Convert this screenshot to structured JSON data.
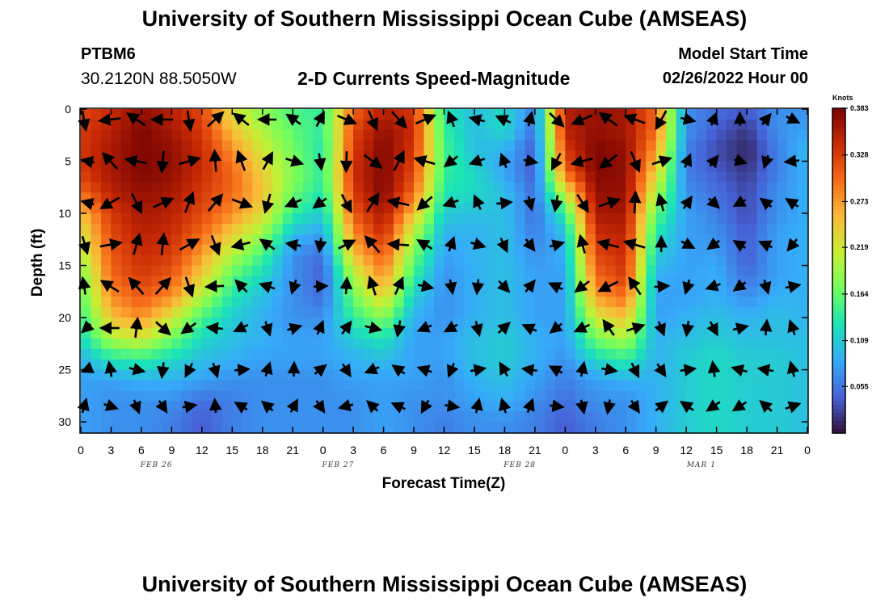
{
  "header": {
    "title": "University of Southern Mississippi Ocean Cube (AMSEAS)",
    "station_id": "PTBM6",
    "station_coords": "30.2120N  88.5050W",
    "subtitle": "2-D Currents Speed-Magnitude",
    "model_start_label": "Model Start Time",
    "model_start_value": "02/26/2022 Hour 00"
  },
  "footer": {
    "title": "University of Southern Mississippi Ocean Cube (AMSEAS)"
  },
  "colors": {
    "colormap": [
      "#30123b",
      "#4662d7",
      "#36aaf9",
      "#1ae4b6",
      "#72fe5e",
      "#c7ef34",
      "#fabb38",
      "#f66b19",
      "#ca2a04",
      "#7a0403"
    ]
  },
  "chart_data": {
    "type": "heatmap",
    "xlabel": "Forecast Time(Z)",
    "ylabel": "Depth (ft)",
    "xlim": [
      0,
      72
    ],
    "ylim": [
      31,
      0
    ],
    "x_ticks": [
      0,
      3,
      6,
      9,
      12,
      15,
      18,
      21,
      24,
      27,
      30,
      33,
      36,
      39,
      42,
      45,
      48,
      51,
      54,
      57,
      60,
      63,
      66,
      69,
      72
    ],
    "x_tick_labels": [
      "0",
      "3",
      "6",
      "9",
      "12",
      "15",
      "18",
      "21",
      "0",
      "3",
      "6",
      "9",
      "12",
      "15",
      "18",
      "21",
      "0",
      "3",
      "6",
      "9",
      "12",
      "15",
      "18",
      "21",
      "0"
    ],
    "y_ticks": [
      0,
      5,
      10,
      15,
      20,
      25,
      30
    ],
    "y_tick_labels": [
      "0",
      "5",
      "10",
      "15",
      "20",
      "25",
      "30"
    ],
    "date_labels": [
      {
        "x": 7.5,
        "label": "FEB 26"
      },
      {
        "x": 25.5,
        "label": "FEB 27"
      },
      {
        "x": 43.5,
        "label": "FEB 28"
      },
      {
        "x": 61.5,
        "label": "MAR 1"
      }
    ],
    "colorbar": {
      "title": "Knots",
      "min": 0.0,
      "max": 0.383,
      "ticks": [
        0.383,
        0.328,
        0.273,
        0.219,
        0.164,
        0.109,
        0.055
      ],
      "tick_labels": [
        "0.383",
        "0.328",
        "0.273",
        "0.219",
        "0.164",
        "0.109",
        "0.055"
      ]
    },
    "speed_grid": {
      "units": "Knots",
      "depths": [
        0,
        2,
        4,
        6,
        8,
        10,
        12,
        14,
        16,
        18,
        20,
        22,
        24,
        26,
        28,
        30
      ],
      "times": [
        0,
        3,
        6,
        9,
        12,
        15,
        18,
        21,
        24,
        27,
        30,
        33,
        36,
        39,
        42,
        45,
        48,
        51,
        54,
        57,
        60,
        63,
        66,
        69,
        72
      ],
      "values": [
        [
          0.32,
          0.34,
          0.37,
          0.35,
          0.32,
          0.22,
          0.18,
          0.15,
          0.14,
          0.3,
          0.35,
          0.33,
          0.13,
          0.1,
          0.12,
          0.06,
          0.35,
          0.37,
          0.36,
          0.3,
          0.07,
          0.05,
          0.04,
          0.07,
          0.07
        ],
        [
          0.33,
          0.35,
          0.38,
          0.36,
          0.33,
          0.25,
          0.2,
          0.16,
          0.14,
          0.32,
          0.37,
          0.34,
          0.14,
          0.1,
          0.12,
          0.05,
          0.35,
          0.37,
          0.36,
          0.3,
          0.07,
          0.04,
          0.02,
          0.07,
          0.08
        ],
        [
          0.33,
          0.36,
          0.38,
          0.37,
          0.34,
          0.28,
          0.22,
          0.17,
          0.13,
          0.33,
          0.38,
          0.33,
          0.15,
          0.1,
          0.09,
          0.04,
          0.33,
          0.38,
          0.37,
          0.27,
          0.06,
          0.03,
          0.01,
          0.06,
          0.1
        ],
        [
          0.33,
          0.36,
          0.38,
          0.37,
          0.34,
          0.3,
          0.24,
          0.18,
          0.14,
          0.34,
          0.38,
          0.32,
          0.14,
          0.12,
          0.08,
          0.04,
          0.3,
          0.38,
          0.37,
          0.24,
          0.06,
          0.04,
          0.02,
          0.06,
          0.09
        ],
        [
          0.3,
          0.35,
          0.37,
          0.36,
          0.33,
          0.3,
          0.25,
          0.17,
          0.13,
          0.33,
          0.38,
          0.3,
          0.13,
          0.12,
          0.1,
          0.05,
          0.22,
          0.37,
          0.37,
          0.2,
          0.07,
          0.05,
          0.03,
          0.07,
          0.09
        ],
        [
          0.25,
          0.33,
          0.36,
          0.35,
          0.32,
          0.28,
          0.23,
          0.14,
          0.11,
          0.31,
          0.36,
          0.25,
          0.11,
          0.1,
          0.1,
          0.05,
          0.14,
          0.36,
          0.36,
          0.16,
          0.08,
          0.06,
          0.03,
          0.07,
          0.09
        ],
        [
          0.22,
          0.32,
          0.35,
          0.34,
          0.3,
          0.24,
          0.19,
          0.1,
          0.08,
          0.28,
          0.34,
          0.2,
          0.09,
          0.09,
          0.1,
          0.06,
          0.1,
          0.34,
          0.35,
          0.13,
          0.08,
          0.07,
          0.04,
          0.08,
          0.09
        ],
        [
          0.2,
          0.31,
          0.34,
          0.33,
          0.27,
          0.2,
          0.15,
          0.07,
          0.05,
          0.25,
          0.31,
          0.17,
          0.08,
          0.09,
          0.1,
          0.07,
          0.09,
          0.32,
          0.34,
          0.11,
          0.08,
          0.08,
          0.04,
          0.08,
          0.09
        ],
        [
          0.17,
          0.3,
          0.33,
          0.31,
          0.24,
          0.16,
          0.12,
          0.07,
          0.04,
          0.2,
          0.28,
          0.14,
          0.07,
          0.09,
          0.1,
          0.08,
          0.08,
          0.3,
          0.33,
          0.09,
          0.08,
          0.09,
          0.05,
          0.08,
          0.09
        ],
        [
          0.16,
          0.28,
          0.31,
          0.28,
          0.2,
          0.13,
          0.1,
          0.07,
          0.05,
          0.17,
          0.24,
          0.11,
          0.07,
          0.09,
          0.1,
          0.08,
          0.08,
          0.27,
          0.3,
          0.08,
          0.08,
          0.09,
          0.07,
          0.09,
          0.09
        ],
        [
          0.14,
          0.25,
          0.28,
          0.22,
          0.15,
          0.11,
          0.09,
          0.07,
          0.07,
          0.14,
          0.18,
          0.09,
          0.07,
          0.09,
          0.1,
          0.08,
          0.08,
          0.22,
          0.25,
          0.08,
          0.09,
          0.1,
          0.09,
          0.1,
          0.09
        ],
        [
          0.12,
          0.2,
          0.22,
          0.17,
          0.12,
          0.1,
          0.09,
          0.08,
          0.08,
          0.11,
          0.13,
          0.08,
          0.08,
          0.1,
          0.11,
          0.09,
          0.08,
          0.17,
          0.2,
          0.09,
          0.1,
          0.11,
          0.1,
          0.1,
          0.1
        ],
        [
          0.09,
          0.13,
          0.14,
          0.12,
          0.1,
          0.09,
          0.08,
          0.08,
          0.08,
          0.09,
          0.1,
          0.08,
          0.08,
          0.1,
          0.11,
          0.09,
          0.07,
          0.12,
          0.14,
          0.09,
          0.11,
          0.12,
          0.11,
          0.11,
          0.1
        ],
        [
          0.08,
          0.08,
          0.09,
          0.09,
          0.08,
          0.07,
          0.07,
          0.07,
          0.07,
          0.08,
          0.08,
          0.08,
          0.07,
          0.09,
          0.1,
          0.08,
          0.06,
          0.08,
          0.09,
          0.09,
          0.11,
          0.12,
          0.11,
          0.11,
          0.1
        ],
        [
          0.08,
          0.07,
          0.07,
          0.07,
          0.05,
          0.06,
          0.07,
          0.07,
          0.07,
          0.07,
          0.08,
          0.07,
          0.07,
          0.08,
          0.09,
          0.07,
          0.05,
          0.07,
          0.07,
          0.09,
          0.11,
          0.12,
          0.11,
          0.11,
          0.1
        ],
        [
          0.08,
          0.07,
          0.07,
          0.06,
          0.04,
          0.06,
          0.07,
          0.07,
          0.07,
          0.07,
          0.08,
          0.07,
          0.06,
          0.07,
          0.07,
          0.06,
          0.04,
          0.06,
          0.07,
          0.09,
          0.11,
          0.12,
          0.11,
          0.11,
          0.1
        ]
      ]
    }
  }
}
